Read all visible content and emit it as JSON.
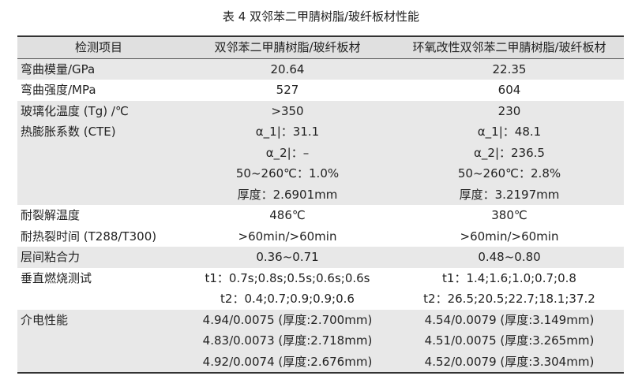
{
  "header": {
    "title": "表 4  双邻苯二甲腈树脂/玻纤板材性能"
  },
  "table": {
    "columns": [
      "检测项目",
      "双邻苯二甲腈树脂/玻纤板材",
      "环氧改性双邻苯二甲腈树脂/玻纤板材"
    ],
    "rows": [
      [
        "弯曲模量/GPa",
        [
          "20.64"
        ],
        [
          "22.35"
        ]
      ],
      [
        "弯曲强度/MPa",
        [
          "527"
        ],
        [
          "604"
        ]
      ],
      [
        "玻璃化温度 (Tg) /℃",
        [
          ">350"
        ],
        [
          "230"
        ]
      ],
      [
        "热膨胀系数 (CTE)",
        [
          "α_1|：31.1",
          "α_2|：–",
          "50~260℃：1.0%",
          "厚度：2.6901mm"
        ],
        [
          "α_1|：48.1",
          "α_2|：236.5",
          "50~260℃：2.8%",
          "厚度：3.2197mm"
        ]
      ],
      [
        "耐裂解温度",
        [
          "486℃"
        ],
        [
          "380℃"
        ]
      ],
      [
        "耐热裂时间 (T288/T300)",
        [
          ">60min/>60min"
        ],
        [
          ">60min/>60min"
        ]
      ],
      [
        "层间粘合力",
        [
          "0.36~0.71"
        ],
        [
          "0.48~0.80"
        ]
      ],
      [
        "垂直燃烧测试",
        [
          "t1：0.7s;0.8s;0.5s;0.6s;0.6s",
          "t2：0.4;0.7;0.9;0.9;0.6"
        ],
        [
          "t1：1.4;1.6;1.0;0.7;0.8",
          "t2：26.5;20.5;22.7;18.1;37.2"
        ]
      ],
      [
        "介电性能",
        [
          "4.94/0.0075 (厚度:2.700mm)",
          "4.83/0.0073 (厚度:2.718mm)",
          "4.92/0.0074 (厚度:2.676mm)"
        ],
        [
          "4.54/0.0079 (厚度:3.149mm)",
          "4.51/0.0075 (厚度:3.265mm)",
          "4.52/0.0079 (厚度:3.304mm)"
        ]
      ]
    ]
  }
}
